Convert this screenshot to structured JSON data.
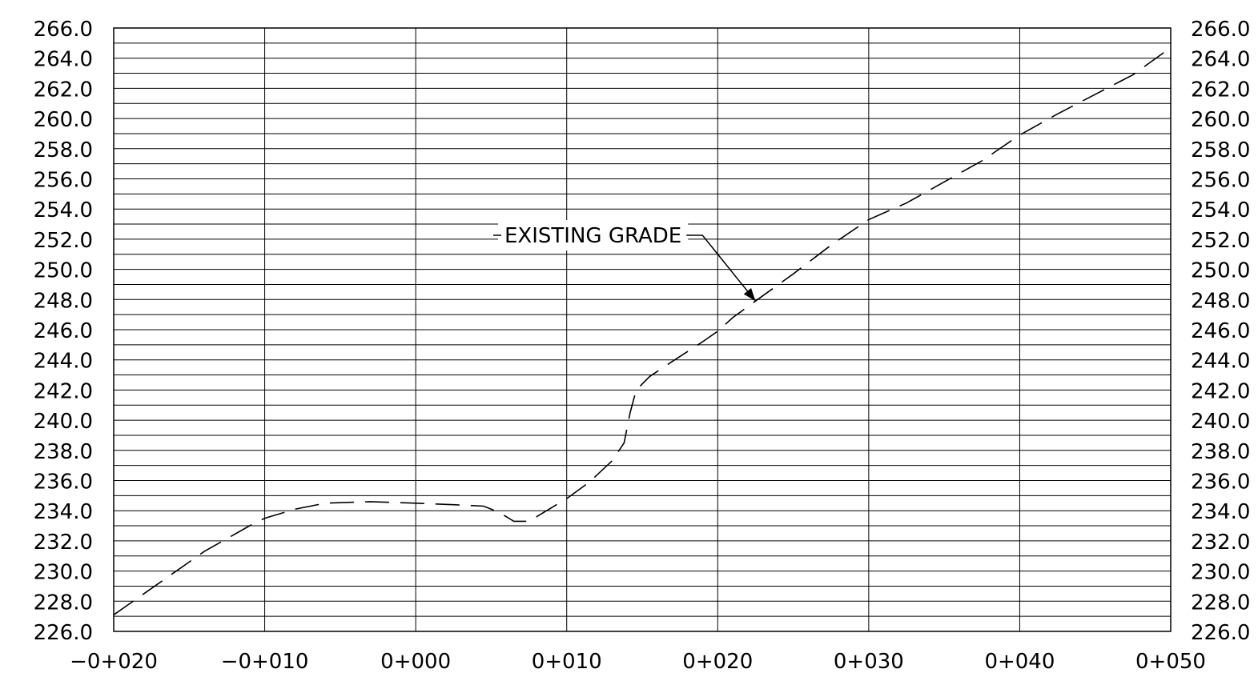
{
  "chart_data": {
    "type": "line",
    "title": "",
    "xlabel": "",
    "ylabel": "",
    "xlim": [
      -20,
      50
    ],
    "ylim": [
      226,
      266
    ],
    "x_ticks": [
      -20,
      -10,
      0,
      10,
      20,
      30,
      40,
      50
    ],
    "x_tick_labels": [
      "−0+020",
      "−0+010",
      "0+000",
      "0+010",
      "0+020",
      "0+030",
      "0+040",
      "0+050"
    ],
    "y_ticks": [
      226,
      228,
      230,
      232,
      234,
      236,
      238,
      240,
      242,
      244,
      246,
      248,
      250,
      252,
      254,
      256,
      258,
      260,
      262,
      264,
      266
    ],
    "y_tick_labels": [
      "226.0",
      "228.0",
      "230.0",
      "232.0",
      "234.0",
      "236.0",
      "238.0",
      "240.0",
      "242.0",
      "244.0",
      "246.0",
      "248.0",
      "250.0",
      "252.0",
      "254.0",
      "256.0",
      "258.0",
      "260.0",
      "262.0",
      "264.0",
      "266.0"
    ],
    "y_minor_step": 1,
    "grid": true,
    "dual_y_axis_labels": true,
    "series": [
      {
        "name": "EXISTING GRADE",
        "style": "dashed",
        "points": [
          [
            -20,
            227.1
          ],
          [
            -17,
            229.2
          ],
          [
            -14,
            231.3
          ],
          [
            -11,
            233.0
          ],
          [
            -10,
            233.5
          ],
          [
            -8,
            234.1
          ],
          [
            -6,
            234.5
          ],
          [
            -3,
            234.6
          ],
          [
            0,
            234.5
          ],
          [
            2.5,
            234.4
          ],
          [
            4.5,
            234.3
          ],
          [
            5.5,
            233.9
          ],
          [
            6.5,
            233.3
          ],
          [
            7.5,
            233.3
          ],
          [
            8.5,
            233.9
          ],
          [
            10,
            234.8
          ],
          [
            11.5,
            235.9
          ],
          [
            13,
            237.3
          ],
          [
            13.8,
            238.5
          ],
          [
            14.2,
            240.5
          ],
          [
            14.6,
            242.0
          ],
          [
            15.5,
            242.9
          ],
          [
            17,
            243.9
          ],
          [
            19,
            245.2
          ],
          [
            20,
            245.9
          ],
          [
            21,
            246.8
          ],
          [
            22.5,
            247.9
          ],
          [
            25,
            249.7
          ],
          [
            27.5,
            251.6
          ],
          [
            30,
            253.3
          ],
          [
            32.5,
            254.4
          ],
          [
            35,
            255.8
          ],
          [
            37.5,
            257.2
          ],
          [
            40,
            258.9
          ],
          [
            42.5,
            260.3
          ],
          [
            45,
            261.6
          ],
          [
            47.5,
            262.9
          ],
          [
            50,
            264.7
          ]
        ]
      }
    ],
    "annotations": [
      {
        "text": "EXISTING GRADE",
        "points_to": [
          22.5,
          247.9
        ]
      }
    ]
  }
}
